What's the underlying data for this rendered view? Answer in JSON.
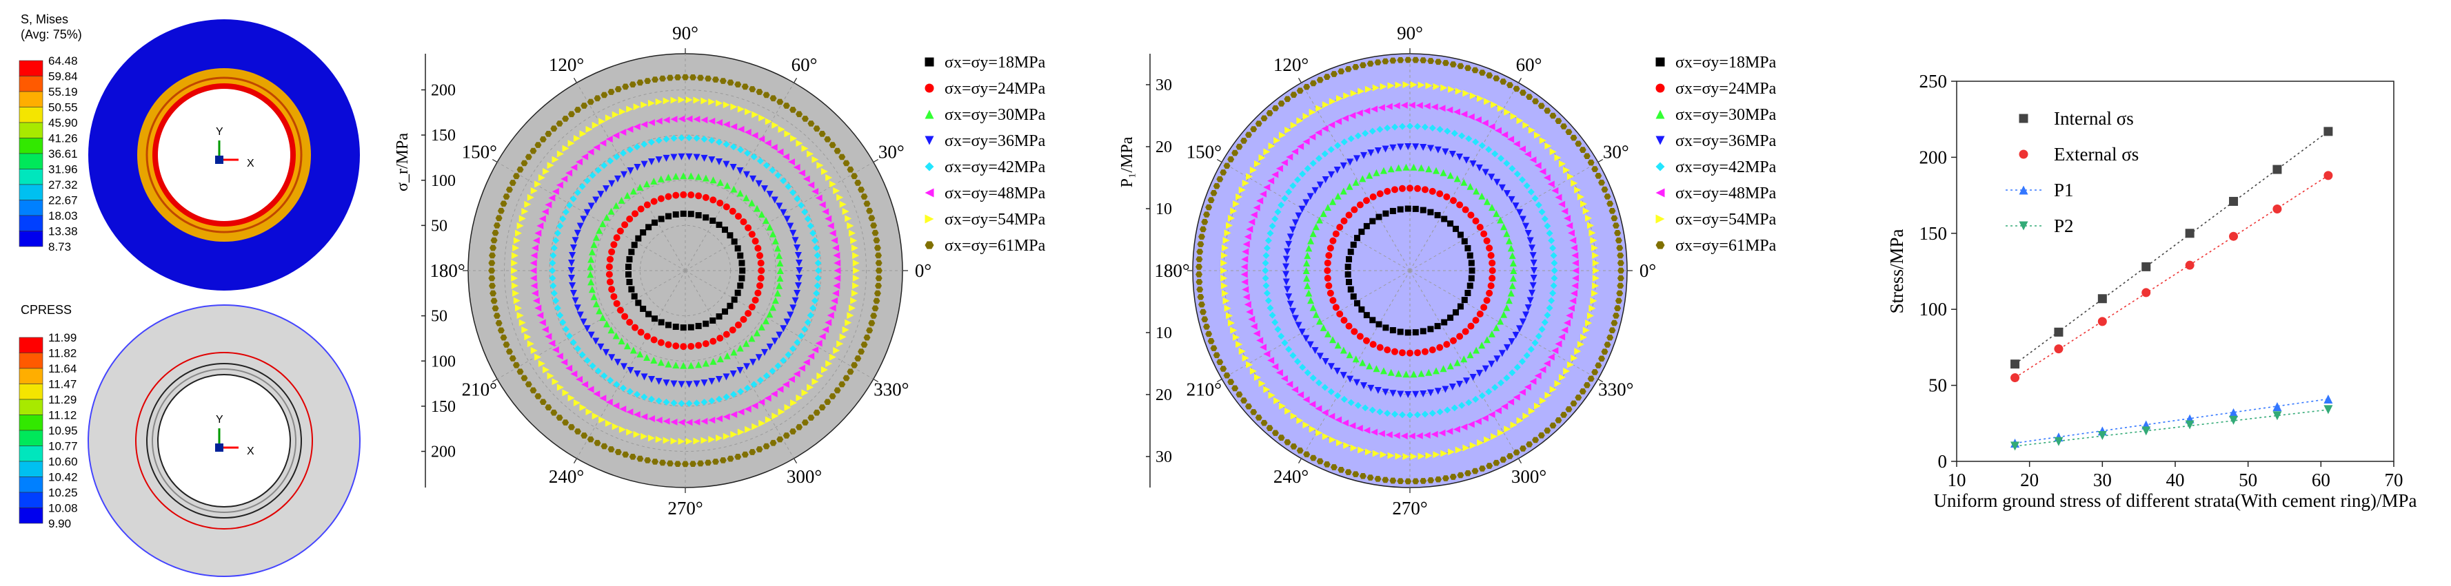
{
  "colors": {
    "black": "#000000",
    "red": "#ff0000",
    "green": "#33ff33",
    "blue": "#1a1aff",
    "cyan": "#22e6ff",
    "magenta": "#ff22ff",
    "yellow": "#ffff22",
    "olive": "#807000",
    "gray_bg": "#bcbcbc",
    "lavender_bg": "#b2b2ff"
  },
  "contour1": {
    "title": "S, Mises",
    "subtitle": "(Avg: 75%)",
    "ticks": [
      "64.48",
      "59.84",
      "55.19",
      "50.55",
      "45.90",
      "41.26",
      "36.61",
      "31.96",
      "27.32",
      "22.67",
      "18.03",
      "13.38",
      "8.73"
    ],
    "colors": [
      "#ff0000",
      "#ff5a00",
      "#ffae00",
      "#f4e500",
      "#a8e900",
      "#32e800",
      "#00e85a",
      "#00e6bd",
      "#00c0f0",
      "#0080ff",
      "#0040ff",
      "#0000ee"
    ],
    "axis_y": "Y",
    "axis_x": "X"
  },
  "contour2": {
    "title": "CPRESS",
    "ticks": [
      "11.99",
      "11.82",
      "11.64",
      "11.47",
      "11.29",
      "11.12",
      "10.95",
      "10.77",
      "10.60",
      "10.42",
      "10.25",
      "10.08",
      "9.90"
    ],
    "colors": [
      "#ff0000",
      "#ff5a00",
      "#ffae00",
      "#f4e500",
      "#a8e900",
      "#32e800",
      "#00e85a",
      "#00e6bd",
      "#00c0f0",
      "#0080ff",
      "#0040ff",
      "#0000ee"
    ],
    "axis_y": "Y",
    "axis_x": "X"
  },
  "chart_data": [
    {
      "type": "scatter",
      "subtype": "polar",
      "radial_label": "σ_r/MPa",
      "radial_ticks": [
        50,
        100,
        150,
        200
      ],
      "rlim": [
        0,
        240
      ],
      "angle_labels": [
        "0°",
        "30°",
        "60°",
        "90°",
        "120°",
        "150°",
        "180°",
        "210°",
        "240°",
        "270°",
        "300°",
        "330°"
      ],
      "background": "gray",
      "series": [
        {
          "name": "σx=σy=18MPa",
          "r": 63,
          "color": "black",
          "marker": "square"
        },
        {
          "name": "σx=σy=24MPa",
          "r": 84,
          "color": "red",
          "marker": "circle"
        },
        {
          "name": "σx=σy=30MPa",
          "r": 105,
          "color": "green",
          "marker": "triangle-up"
        },
        {
          "name": "σx=σy=36MPa",
          "r": 126,
          "color": "blue",
          "marker": "triangle-down"
        },
        {
          "name": "σx=σy=42MPa",
          "r": 147,
          "color": "cyan",
          "marker": "diamond"
        },
        {
          "name": "σx=σy=48MPa",
          "r": 168,
          "color": "magenta",
          "marker": "triangle-left"
        },
        {
          "name": "σx=σy=54MPa",
          "r": 189,
          "color": "yellow",
          "marker": "triangle-right"
        },
        {
          "name": "σx=σy=61MPa",
          "r": 214,
          "color": "olive",
          "marker": "hexagon"
        }
      ]
    },
    {
      "type": "scatter",
      "subtype": "polar",
      "radial_label": "P₁/MPa",
      "radial_ticks": [
        10,
        20,
        30
      ],
      "rlim": [
        0,
        35
      ],
      "angle_labels": [
        "0°",
        "30°",
        "60°",
        "90°",
        "120°",
        "150°",
        "180°",
        "210°",
        "240°",
        "270°",
        "300°",
        "330°"
      ],
      "background": "lavender",
      "series": [
        {
          "name": "σx=σy=18MPa",
          "r": 10,
          "color": "black",
          "marker": "square"
        },
        {
          "name": "σx=σy=24MPa",
          "r": 13.3,
          "color": "red",
          "marker": "circle"
        },
        {
          "name": "σx=σy=30MPa",
          "r": 16.7,
          "color": "green",
          "marker": "triangle-up"
        },
        {
          "name": "σx=σy=36MPa",
          "r": 20,
          "color": "blue",
          "marker": "triangle-down"
        },
        {
          "name": "σx=σy=42MPa",
          "r": 23.3,
          "color": "cyan",
          "marker": "diamond"
        },
        {
          "name": "σx=σy=48MPa",
          "r": 26.7,
          "color": "magenta",
          "marker": "triangle-left"
        },
        {
          "name": "σx=σy=54MPa",
          "r": 30,
          "color": "yellow",
          "marker": "triangle-right"
        },
        {
          "name": "σx=σy=61MPa",
          "r": 34,
          "color": "olive",
          "marker": "hexagon"
        }
      ]
    },
    {
      "type": "scatter",
      "xlabel": "Uniform ground stress of different strata(With cement ring)/MPa",
      "ylabel": "Stress/MPa",
      "xlim": [
        10,
        70
      ],
      "ylim": [
        0,
        250
      ],
      "xticks": [
        10,
        20,
        30,
        40,
        50,
        60,
        70
      ],
      "yticks": [
        0,
        50,
        100,
        150,
        200,
        250
      ],
      "x": [
        18,
        24,
        30,
        36,
        42,
        48,
        54,
        61
      ],
      "series": [
        {
          "name": "Internal σs",
          "values": [
            64,
            85,
            107,
            128,
            150,
            171,
            192,
            217
          ],
          "color": "#444444",
          "marker": "square",
          "fit": [
            3.56,
            0
          ]
        },
        {
          "name": "External σs",
          "values": [
            55,
            74,
            92,
            111,
            129,
            148,
            166,
            188
          ],
          "color": "#ee3333",
          "marker": "circle",
          "fit": [
            3.09,
            0
          ]
        },
        {
          "name": "P1",
          "values": [
            12,
            16,
            20,
            24,
            28,
            32,
            36,
            41
          ],
          "color": "#3377ff",
          "marker": "triangle-up",
          "fit": [
            0.67,
            0
          ]
        },
        {
          "name": "P2",
          "values": [
            10,
            13,
            17,
            20,
            24,
            27,
            30,
            34
          ],
          "color": "#33aa77",
          "marker": "triangle-down",
          "fit": [
            0.56,
            0
          ]
        }
      ]
    }
  ]
}
